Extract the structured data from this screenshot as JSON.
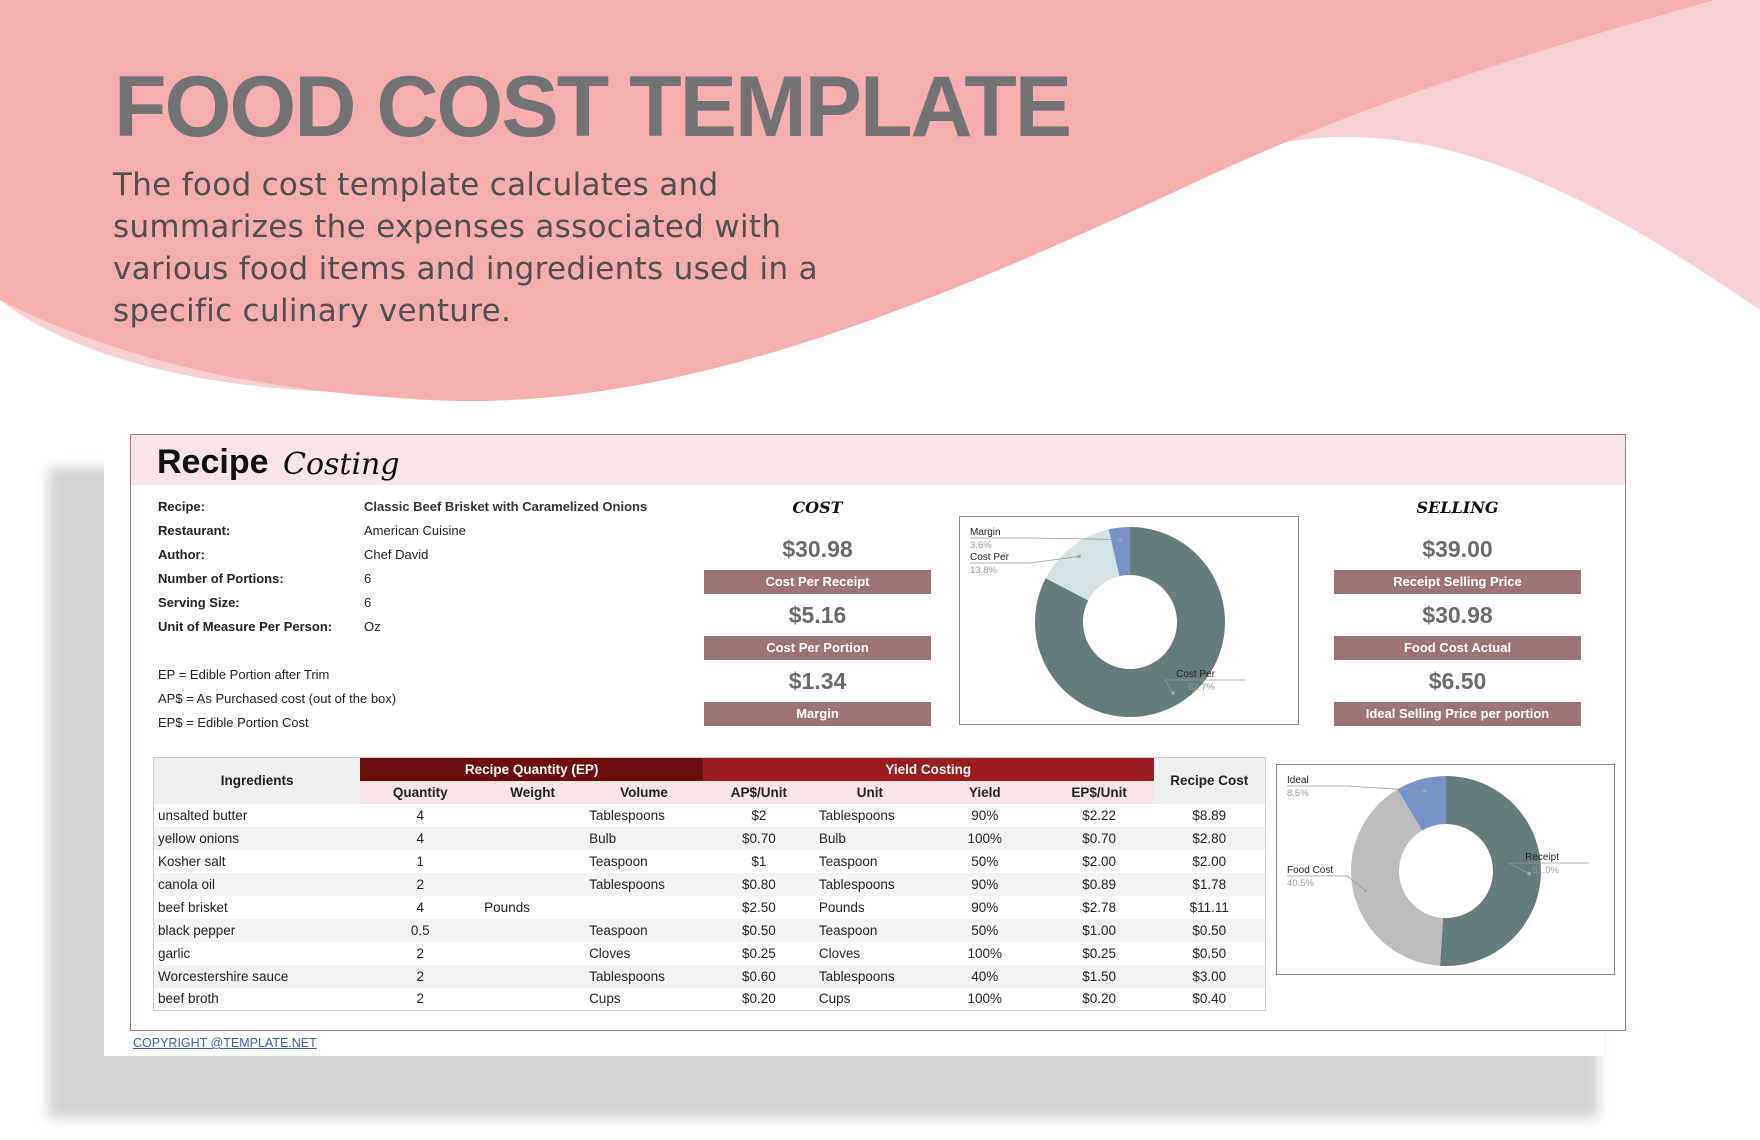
{
  "header": {
    "title": "FOOD COST TEMPLATE",
    "description": "The food cost template calculates and summarizes the expenses associated with various food items and ingredients used in a specific culinary venture."
  },
  "sheet": {
    "title_bold": "Recipe",
    "title_script": "Costing",
    "info": [
      {
        "label": "Recipe:",
        "value": "Classic Beef Brisket with Caramelized Onions"
      },
      {
        "label": "Restaurant:",
        "value": "American Cuisine"
      },
      {
        "label": "Author:",
        "value": "Chef David"
      },
      {
        "label": "Number of Portions:",
        "value": "6"
      },
      {
        "label": "Serving Size:",
        "value": "6"
      },
      {
        "label": "Unit of Measure Per Person:",
        "value": "Oz"
      }
    ],
    "notes": [
      "EP = Edible Portion after Trim",
      "AP$ = As Purchased cost (out of the box)",
      "EP$ = Edible Portion Cost"
    ],
    "cost": {
      "heading": "COST",
      "items": [
        {
          "value": "$30.98",
          "label": "Cost Per Receipt"
        },
        {
          "value": "$5.16",
          "label": "Cost Per Portion"
        },
        {
          "value": "$1.34",
          "label": "Margin"
        }
      ]
    },
    "selling": {
      "heading": "SELLING",
      "items": [
        {
          "value": "$39.00",
          "label": "Receipt Selling Price"
        },
        {
          "value": "$30.98",
          "label": "Food Cost Actual"
        },
        {
          "value": "$6.50",
          "label": "Ideal Selling Price per portion"
        }
      ]
    },
    "copyright": "COPYRIGHT @TEMPLATE.NET"
  },
  "table": {
    "group_headers": {
      "ingredients": "Ingredients",
      "recipe_quantity": "Recipe Quantity (EP)",
      "yield_costing": "Yield Costing",
      "recipe_cost": "Recipe Cost"
    },
    "columns": [
      "Quantity",
      "Weight",
      "Volume",
      "AP$/Unit",
      "Unit",
      "Yield",
      "EP$/Unit"
    ],
    "rows": [
      [
        "unsalted butter",
        "4",
        "",
        "Tablespoons",
        "$2",
        "Tablespoons",
        "90%",
        "$2.22",
        "$8.89"
      ],
      [
        "yellow onions",
        "4",
        "",
        "Bulb",
        "$0.70",
        "Bulb",
        "100%",
        "$0.70",
        "$2.80"
      ],
      [
        "Kosher salt",
        "1",
        "",
        "Teaspoon",
        "$1",
        "Teaspoon",
        "50%",
        "$2.00",
        "$2.00"
      ],
      [
        "canola oil",
        "2",
        "",
        "Tablespoons",
        "$0.80",
        "Tablespoons",
        "90%",
        "$0.89",
        "$1.78"
      ],
      [
        "beef brisket",
        "4",
        "Pounds",
        "",
        "$2.50",
        "Pounds",
        "90%",
        "$2.78",
        "$11.11"
      ],
      [
        "black pepper",
        "0.5",
        "",
        "Teaspoon",
        "$0.50",
        "Teaspoon",
        "50%",
        "$1.00",
        "$0.50"
      ],
      [
        "garlic",
        "2",
        "",
        "Cloves",
        "$0.25",
        "Cloves",
        "100%",
        "$0.25",
        "$0.50"
      ],
      [
        "Worcestershire sauce",
        "2",
        "",
        "Tablespoons",
        "$0.60",
        "Tablespoons",
        "40%",
        "$1.50",
        "$3.00"
      ],
      [
        "beef broth",
        "2",
        "",
        "Cups",
        "$0.20",
        "Cups",
        "100%",
        "$0.20",
        "$0.40"
      ]
    ]
  },
  "chart_data": [
    {
      "type": "pie",
      "donut": true,
      "slices": [
        {
          "label": "Cost Per",
          "value": 82.7,
          "color": "#667b7e"
        },
        {
          "label": "Cost Per",
          "value": 13.8,
          "color": "#d3e2e5"
        },
        {
          "label": "Margin",
          "value": 3.6,
          "color": "#7892c8"
        }
      ]
    },
    {
      "type": "pie",
      "donut": true,
      "slices": [
        {
          "label": "Receipt",
          "value": 51.0,
          "color": "#667b7e"
        },
        {
          "label": "Food Cost",
          "value": 40.5,
          "color": "#bdbdbd"
        },
        {
          "label": "Ideal",
          "value": 8.5,
          "color": "#7892c8"
        }
      ]
    }
  ],
  "colors": {
    "banner": "#f7aeb0",
    "banner_light": "#f7d0d2",
    "bar": "#9d7474",
    "group_dark": "#6b0e10",
    "group_red": "#9a1c1f"
  }
}
